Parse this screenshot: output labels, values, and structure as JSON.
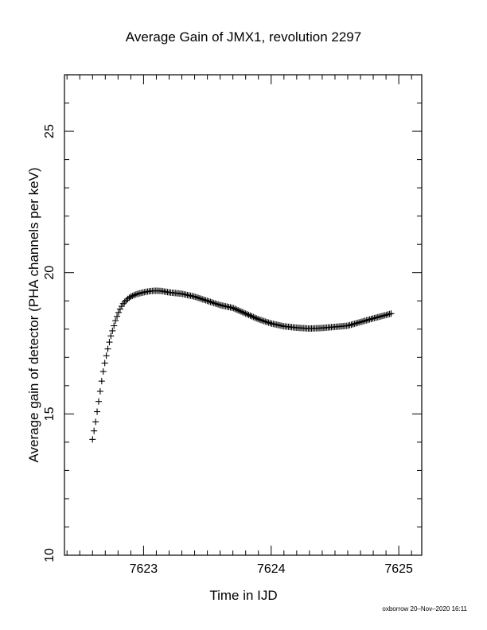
{
  "chart_data": {
    "type": "scatter",
    "title": "Average Gain of JMX1, revolution 2297",
    "xlabel": "Time in IJD",
    "ylabel": "Average gain of detector (PHA channels per keV)",
    "xlim": [
      7622.38,
      7625.18
    ],
    "ylim": [
      10,
      27
    ],
    "x_ticks": [
      7623,
      7624,
      7625
    ],
    "x_tick_labels": [
      "7623",
      "7624",
      "7625"
    ],
    "x_minor_step": 0.1,
    "y_ticks": [
      10,
      15,
      20,
      25
    ],
    "y_tick_labels": [
      "10",
      "15",
      "20",
      "25"
    ],
    "y_minor_step": 1,
    "grid": false,
    "marker": "+",
    "series": [
      {
        "x": [
          7622.6,
          7622.62,
          7622.64,
          7622.66,
          7622.68,
          7622.7,
          7622.72,
          7622.74,
          7622.76,
          7622.78,
          7622.8,
          7622.82,
          7622.84,
          7622.87,
          7622.9,
          7622.94,
          7622.98,
          7623.02,
          7623.06,
          7623.1,
          7623.14,
          7623.2,
          7623.3,
          7623.4,
          7623.5,
          7623.6,
          7623.7,
          7623.8,
          7623.9,
          7624.0,
          7624.1,
          7624.2,
          7624.3,
          7624.4,
          7624.5,
          7624.6,
          7624.7,
          7624.8,
          7624.9,
          7624.94
        ],
        "y": [
          14.1,
          14.6,
          15.2,
          15.8,
          16.4,
          16.9,
          17.3,
          17.7,
          18.0,
          18.3,
          18.55,
          18.75,
          18.9,
          19.05,
          19.15,
          19.23,
          19.28,
          19.32,
          19.35,
          19.36,
          19.35,
          19.3,
          19.25,
          19.15,
          19.0,
          18.85,
          18.75,
          18.55,
          18.35,
          18.2,
          18.1,
          18.05,
          18.02,
          18.04,
          18.08,
          18.12,
          18.25,
          18.38,
          18.5,
          18.55
        ]
      }
    ]
  },
  "footer": "oxborrow 20–Nov–2020 16:11"
}
